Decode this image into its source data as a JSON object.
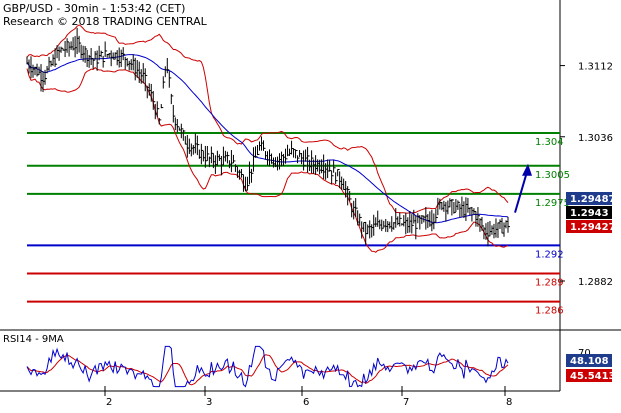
{
  "header": {
    "line1": "GBP/USD - 30min - 1:53:42 (CET)",
    "line2": "Research © 2018 TRADING CENTRAL"
  },
  "colors": {
    "price": "#000000",
    "bollinger": "#cc0000",
    "moving_average": "#0000cc",
    "resistance": "#008000",
    "pivot": "#0000cc",
    "support": "#cc0000",
    "arrow": "#0000aa",
    "rsi": "#0000cc",
    "rsi_ma": "#cc0000",
    "tag_blue": "#1f3b8c",
    "tag_black": "#000000",
    "tag_red": "#cc0000",
    "divider": "#000000"
  },
  "chart_data": [
    {
      "type": "candlestick",
      "title": "GBP/USD - 30min - 1:53:42 (CET)",
      "ylim": [
        1.2835,
        1.315
      ],
      "y_ticks": [
        "1.3112",
        "1.3036",
        "1.2882"
      ],
      "y_tick_values": [
        1.3112,
        1.3036,
        1.2882
      ],
      "x_ticks": [
        "2",
        "3",
        "6",
        "7",
        "8"
      ],
      "levels": [
        {
          "label": "1.304",
          "value": 1.304,
          "kind": "resistance"
        },
        {
          "label": "1.3005",
          "value": 1.3005,
          "kind": "resistance"
        },
        {
          "label": "1.2975",
          "value": 1.2975,
          "kind": "resistance"
        },
        {
          "label": "1.292",
          "value": 1.292,
          "kind": "pivot"
        },
        {
          "label": "1.289",
          "value": 1.289,
          "kind": "support"
        },
        {
          "label": "1.286",
          "value": 1.286,
          "kind": "support"
        }
      ],
      "price_tags": [
        {
          "label": "1.29487",
          "value": 1.29487,
          "style": "blue"
        },
        {
          "label": "1.2943",
          "value": 1.2943,
          "style": "black"
        },
        {
          "label": "1.29427",
          "value": 1.29427,
          "style": "red"
        }
      ],
      "price_path": [
        [
          0,
          1.3115
        ],
        [
          5,
          1.31
        ],
        [
          10,
          1.3128
        ],
        [
          15,
          1.3135
        ],
        [
          20,
          1.3118
        ],
        [
          25,
          1.3125
        ],
        [
          30,
          1.312
        ],
        [
          35,
          1.31
        ],
        [
          38,
          1.3075
        ],
        [
          40,
          1.305
        ],
        [
          42,
          1.312
        ],
        [
          44,
          1.306
        ],
        [
          48,
          1.303
        ],
        [
          55,
          1.3012
        ],
        [
          62,
          1.301
        ],
        [
          66,
          1.2985
        ],
        [
          70,
          1.3025
        ],
        [
          75,
          1.301
        ],
        [
          80,
          1.302
        ],
        [
          85,
          1.3008
        ],
        [
          90,
          1.3005
        ],
        [
          95,
          1.299
        ],
        [
          98,
          1.296
        ],
        [
          102,
          1.2935
        ],
        [
          108,
          1.2945
        ],
        [
          115,
          1.2942
        ],
        [
          122,
          1.2948
        ],
        [
          125,
          1.2965
        ],
        [
          130,
          1.296
        ],
        [
          135,
          1.2955
        ],
        [
          138,
          1.2935
        ],
        [
          142,
          1.2938
        ],
        [
          145,
          1.2943
        ]
      ],
      "projection": {
        "from": 1.2955,
        "to": 1.3005
      },
      "series": [
        {
          "name": "",
          "values": [],
          "role": "price"
        }
      ]
    },
    {
      "type": "line",
      "title": "RSI14 - 9MA",
      "y_ticks": [
        "70"
      ],
      "value_tags": [
        {
          "label": "48.108",
          "value": 48.108,
          "style": "blue"
        },
        {
          "label": "45.5413",
          "value": 45.5413,
          "style": "red"
        }
      ],
      "ylim": [
        20,
        80
      ]
    }
  ]
}
